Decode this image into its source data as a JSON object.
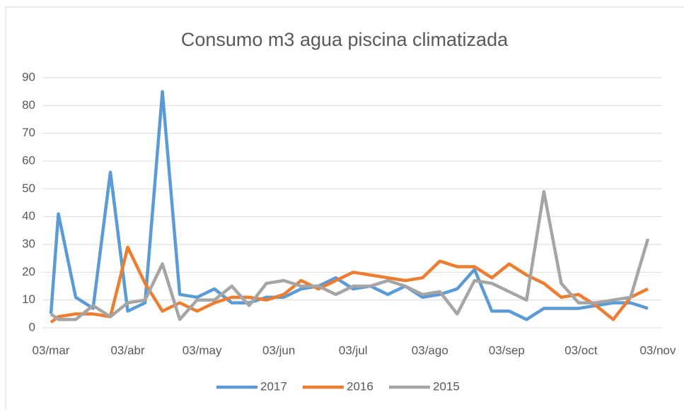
{
  "chart_data": {
    "type": "line",
    "title": "Consumo m3 agua piscina climatizada",
    "x": [
      0,
      3,
      10,
      17,
      24,
      31,
      38,
      45,
      52,
      59,
      66,
      73,
      80,
      87,
      94,
      101,
      108,
      115,
      122,
      129,
      136,
      143,
      150,
      157,
      164,
      171,
      178,
      185,
      192,
      199,
      206,
      213,
      220,
      227,
      234,
      241
    ],
    "xlim": [
      0,
      245
    ],
    "xticks": [
      {
        "value": 0,
        "label": "03/mar"
      },
      {
        "value": 31,
        "label": "03/abr"
      },
      {
        "value": 61,
        "label": "03/may"
      },
      {
        "value": 92,
        "label": "03/jun"
      },
      {
        "value": 122,
        "label": "03/jul"
      },
      {
        "value": 153,
        "label": "03/ago"
      },
      {
        "value": 184,
        "label": "03/sep"
      },
      {
        "value": 214,
        "label": "03/oct"
      },
      {
        "value": 245,
        "label": "03/nov"
      }
    ],
    "ylim": [
      0,
      90
    ],
    "yticks": [
      0,
      10,
      20,
      30,
      40,
      50,
      60,
      70,
      80,
      90
    ],
    "grid": true,
    "legend": "bottom",
    "series": [
      {
        "name": "2017",
        "color": "#5b9bd5",
        "values": [
          5,
          41,
          11,
          7,
          56,
          6,
          9,
          85,
          12,
          11,
          14,
          9,
          9,
          11,
          11,
          14,
          15,
          18,
          14,
          15,
          12,
          15,
          11,
          12,
          14,
          21,
          6,
          6,
          3,
          7,
          7,
          7,
          8,
          9,
          9,
          7
        ]
      },
      {
        "name": "2016",
        "color": "#ed7d31",
        "values": [
          2,
          4,
          5,
          5,
          4,
          29,
          16,
          6,
          9,
          6,
          9,
          11,
          11,
          10,
          12,
          17,
          14,
          17,
          20,
          19,
          18,
          17,
          18,
          24,
          22,
          22,
          18,
          23,
          19,
          16,
          11,
          12,
          8,
          3,
          11,
          14
        ]
      },
      {
        "name": "2015",
        "color": "#a5a5a5",
        "values": [
          5,
          3,
          3,
          8,
          4,
          9,
          10,
          23,
          3,
          10,
          10,
          15,
          8,
          16,
          17,
          15,
          15,
          12,
          15,
          15,
          17,
          15,
          12,
          13,
          5,
          17,
          16,
          13,
          10,
          49,
          16,
          9,
          9,
          10,
          11,
          32
        ]
      }
    ]
  }
}
